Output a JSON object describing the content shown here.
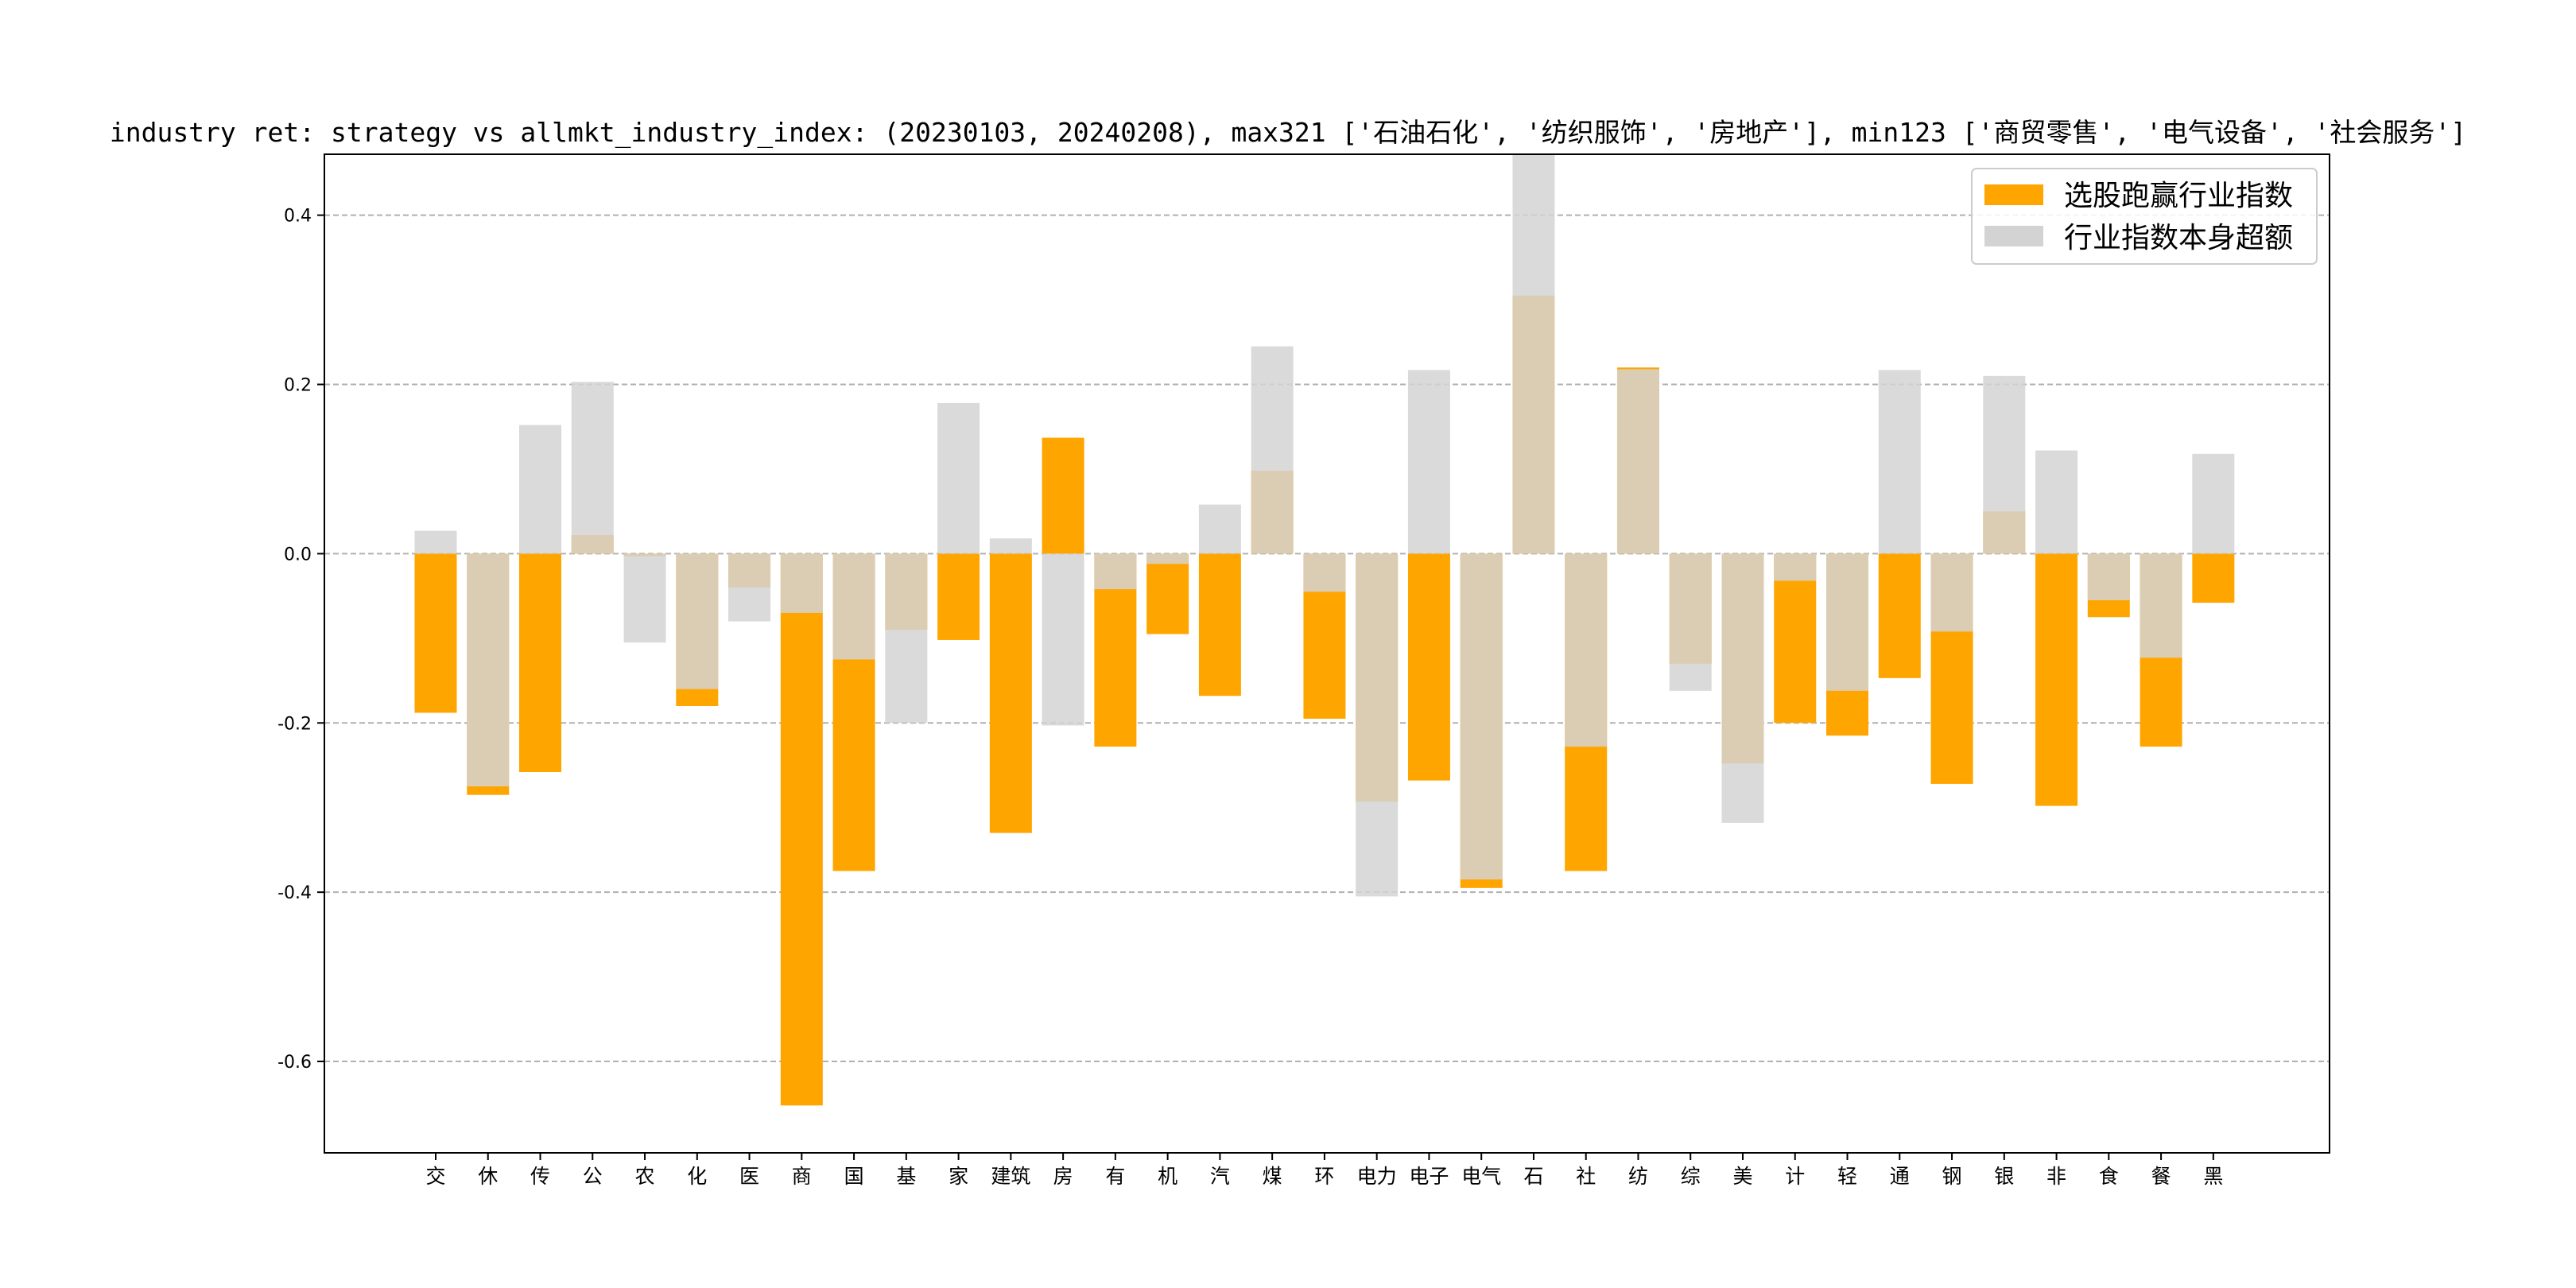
{
  "chart_data": {
    "type": "bar",
    "title": "industry ret: strategy vs allmkt_industry_index: (20230103, 20240208), max321 ['石油石化', '纺织服饰', '房地产'], min123 ['商贸零售', '电气设备', '社会服务']",
    "xlabel": "",
    "ylabel": "",
    "ylim": [
      -0.708,
      0.472
    ],
    "yticks": [
      -0.6,
      -0.4,
      -0.2,
      0.0,
      0.2,
      0.4
    ],
    "grid": "y-dashed",
    "legend_position": "top-right",
    "categories": [
      "交",
      "休",
      "传",
      "公",
      "农",
      "化",
      "医",
      "商",
      "国",
      "基",
      "家",
      "建筑",
      "房",
      "有",
      "机",
      "汽",
      "煤",
      "环",
      "电力",
      "电子",
      "电气",
      "石",
      "社",
      "纺",
      "综",
      "美",
      "计",
      "轻",
      "通",
      "钢",
      "银",
      "非",
      "食",
      "餐",
      "黑"
    ],
    "series": [
      {
        "name": "选股跑赢行业指数",
        "color": "#ffa500",
        "values": [
          -0.188,
          -0.285,
          -0.258,
          0.022,
          -0.003,
          -0.18,
          -0.04,
          -0.652,
          -0.375,
          -0.09,
          -0.102,
          -0.33,
          0.137,
          -0.228,
          -0.095,
          -0.168,
          0.098,
          -0.195,
          -0.293,
          -0.268,
          -0.395,
          0.305,
          -0.375,
          0.22,
          -0.13,
          -0.248,
          -0.2,
          -0.215,
          -0.147,
          -0.272,
          0.05,
          -0.298,
          -0.075,
          -0.228,
          -0.058
        ]
      },
      {
        "name": "行业指数本身超额",
        "color": "#d3d3d3",
        "values": [
          0.027,
          -0.275,
          0.152,
          0.203,
          -0.105,
          -0.16,
          -0.08,
          -0.07,
          -0.125,
          -0.2,
          0.178,
          0.018,
          -0.203,
          -0.042,
          -0.012,
          0.058,
          0.245,
          -0.045,
          -0.405,
          0.217,
          -0.385,
          0.472,
          -0.228,
          0.218,
          -0.162,
          -0.318,
          -0.032,
          -0.162,
          0.217,
          -0.092,
          0.21,
          0.122,
          -0.055,
          -0.123,
          0.118
        ]
      }
    ]
  }
}
